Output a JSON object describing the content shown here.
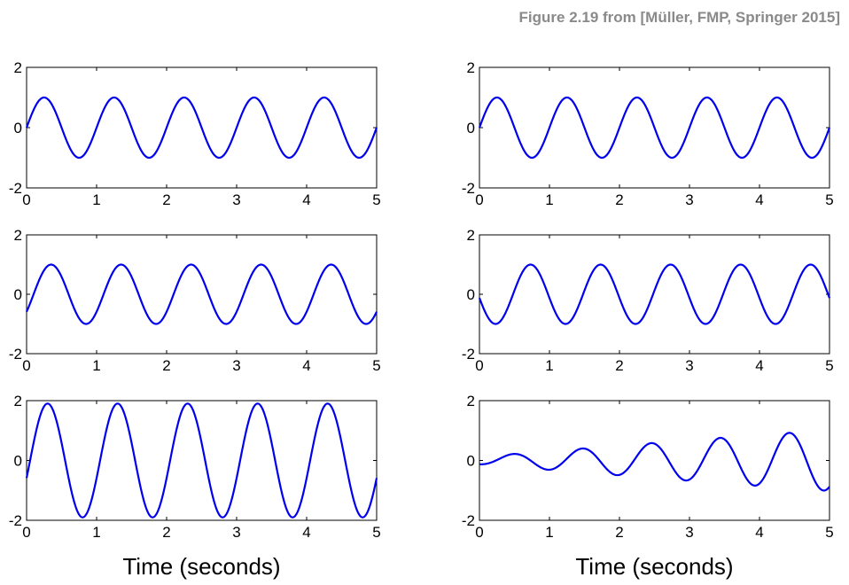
{
  "caption": "Figure 2.19 from [Müller, FMP, Springer 2015]",
  "line_color": "#0000ee",
  "chart_data": [
    {
      "type": "line",
      "xlim": [
        0,
        5
      ],
      "ylim": [
        -2,
        2
      ],
      "xticks": [
        "0",
        "1",
        "2",
        "3",
        "4",
        "5"
      ],
      "yticks": [
        "-2",
        "0",
        "2"
      ],
      "xlabel": "",
      "sinusoids": [
        {
          "amplitude": 1.0,
          "frequency": 1,
          "phase": 0.0
        }
      ]
    },
    {
      "type": "line",
      "xlim": [
        0,
        5
      ],
      "ylim": [
        -2,
        2
      ],
      "xticks": [
        "0",
        "1",
        "2",
        "3",
        "4",
        "5"
      ],
      "yticks": [
        "-2",
        "0",
        "2"
      ],
      "xlabel": "",
      "sinusoids": [
        {
          "amplitude": 1.0,
          "frequency": 1,
          "phase": 0.0
        }
      ]
    },
    {
      "type": "line",
      "xlim": [
        0,
        5
      ],
      "ylim": [
        -2,
        2
      ],
      "xticks": [
        "0",
        "1",
        "2",
        "3",
        "4",
        "5"
      ],
      "yticks": [
        "-2",
        "0",
        "2"
      ],
      "xlabel": "",
      "sinusoids": [
        {
          "amplitude": 1.0,
          "frequency": 1,
          "phase": 0.1
        }
      ]
    },
    {
      "type": "line",
      "xlim": [
        0,
        5
      ],
      "ylim": [
        -2,
        2
      ],
      "xticks": [
        "0",
        "1",
        "2",
        "3",
        "4",
        "5"
      ],
      "yticks": [
        "-2",
        "0",
        "2"
      ],
      "xlabel": "",
      "sinusoids": [
        {
          "amplitude": 1.0,
          "frequency": 1,
          "phase": 0.48
        }
      ]
    },
    {
      "type": "line",
      "xlim": [
        0,
        5
      ],
      "ylim": [
        -2,
        2
      ],
      "xticks": [
        "0",
        "1",
        "2",
        "3",
        "4",
        "5"
      ],
      "yticks": [
        "-2",
        "0",
        "2"
      ],
      "xlabel": "Time (seconds)",
      "sinusoids": [
        {
          "amplitude": 1.0,
          "frequency": 1,
          "phase": 0.0
        },
        {
          "amplitude": 1.0,
          "frequency": 1,
          "phase": 0.1
        }
      ]
    },
    {
      "type": "line",
      "xlim": [
        0,
        5
      ],
      "ylim": [
        -2,
        2
      ],
      "xticks": [
        "0",
        "1",
        "2",
        "3",
        "4",
        "5"
      ],
      "yticks": [
        "-2",
        "0",
        "2"
      ],
      "xlabel": "Time (seconds)",
      "sinusoids": [
        {
          "amplitude": 1.0,
          "frequency": 1,
          "phase": 0.0
        },
        {
          "amplitude": 1.0,
          "frequency": 1.03,
          "phase": 0.48
        }
      ]
    }
  ]
}
